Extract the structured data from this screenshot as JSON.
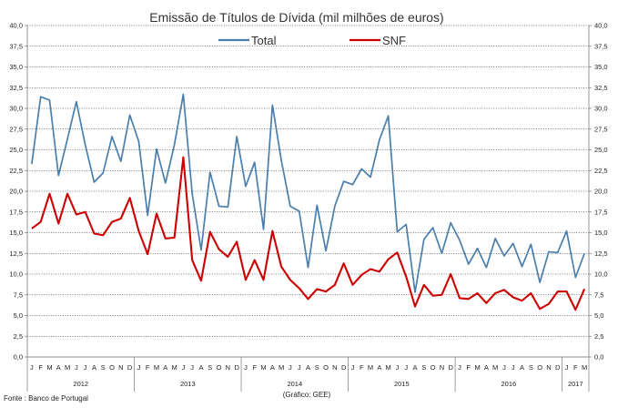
{
  "chart_data": {
    "type": "line",
    "title": "Emissão de Títulos de Dívida (mil milhões de euros)",
    "source": "Fonte : Banco de Portugal",
    "credit": "(Gráfico: GEE)",
    "ylim": [
      0,
      40
    ],
    "ytick_labels": [
      "0,0",
      "2,5",
      "5,0",
      "7,5",
      "10,0",
      "12,5",
      "15,0",
      "17,5",
      "20,0",
      "22,5",
      "25,0",
      "27,5",
      "30,0",
      "32,5",
      "35,0",
      "37,5",
      "40,0"
    ],
    "month_labels": [
      "J",
      "F",
      "M",
      "A",
      "M",
      "J",
      "J",
      "A",
      "S",
      "O",
      "N",
      "D"
    ],
    "years": [
      "2012",
      "2013",
      "2014",
      "2015",
      "2016",
      "2017"
    ],
    "months_in_last_year": 3,
    "legend": [
      "Total",
      "SNF"
    ],
    "colors": {
      "Total": "#4a7eac",
      "SNF": "#cc0000",
      "grid": "#000000",
      "axis": "#888888"
    },
    "series": [
      {
        "name": "Total",
        "values": [
          23.3,
          31.4,
          31.0,
          21.9,
          26.3,
          30.8,
          25.6,
          21.1,
          22.2,
          26.6,
          23.6,
          29.2,
          26.0,
          17.1,
          25.1,
          21.0,
          25.6,
          31.7,
          19.7,
          12.9,
          22.3,
          18.2,
          18.1,
          26.6,
          20.6,
          23.5,
          15.4,
          30.4,
          23.7,
          18.2,
          17.6,
          10.8,
          18.3,
          12.8,
          18.2,
          21.2,
          20.8,
          22.7,
          21.7,
          26.2,
          29.1,
          15.1,
          16.0,
          7.8,
          14.2,
          15.6,
          12.5,
          16.2,
          14.1,
          11.2,
          13.1,
          10.8,
          14.3,
          12.2,
          13.7,
          10.9,
          13.6,
          9.0,
          12.7,
          12.6,
          15.2,
          9.6,
          12.5
        ]
      },
      {
        "name": "SNF",
        "values": [
          15.5,
          16.3,
          19.7,
          16.1,
          19.7,
          17.2,
          17.5,
          14.9,
          14.7,
          16.3,
          16.7,
          19.2,
          15.2,
          12.4,
          17.3,
          14.3,
          14.4,
          24.1,
          11.7,
          9.2,
          15.1,
          13.0,
          12.1,
          13.9,
          9.3,
          11.7,
          9.3,
          15.2,
          10.9,
          9.3,
          8.3,
          7.0,
          8.2,
          7.9,
          8.7,
          11.3,
          8.7,
          9.9,
          10.6,
          10.3,
          11.8,
          12.6,
          9.7,
          6.1,
          8.7,
          7.4,
          7.5,
          10.0,
          7.1,
          7.0,
          7.7,
          6.5,
          7.7,
          8.1,
          7.2,
          6.8,
          7.7,
          5.8,
          6.4,
          7.9,
          7.9,
          5.7,
          8.2
        ]
      }
    ]
  }
}
